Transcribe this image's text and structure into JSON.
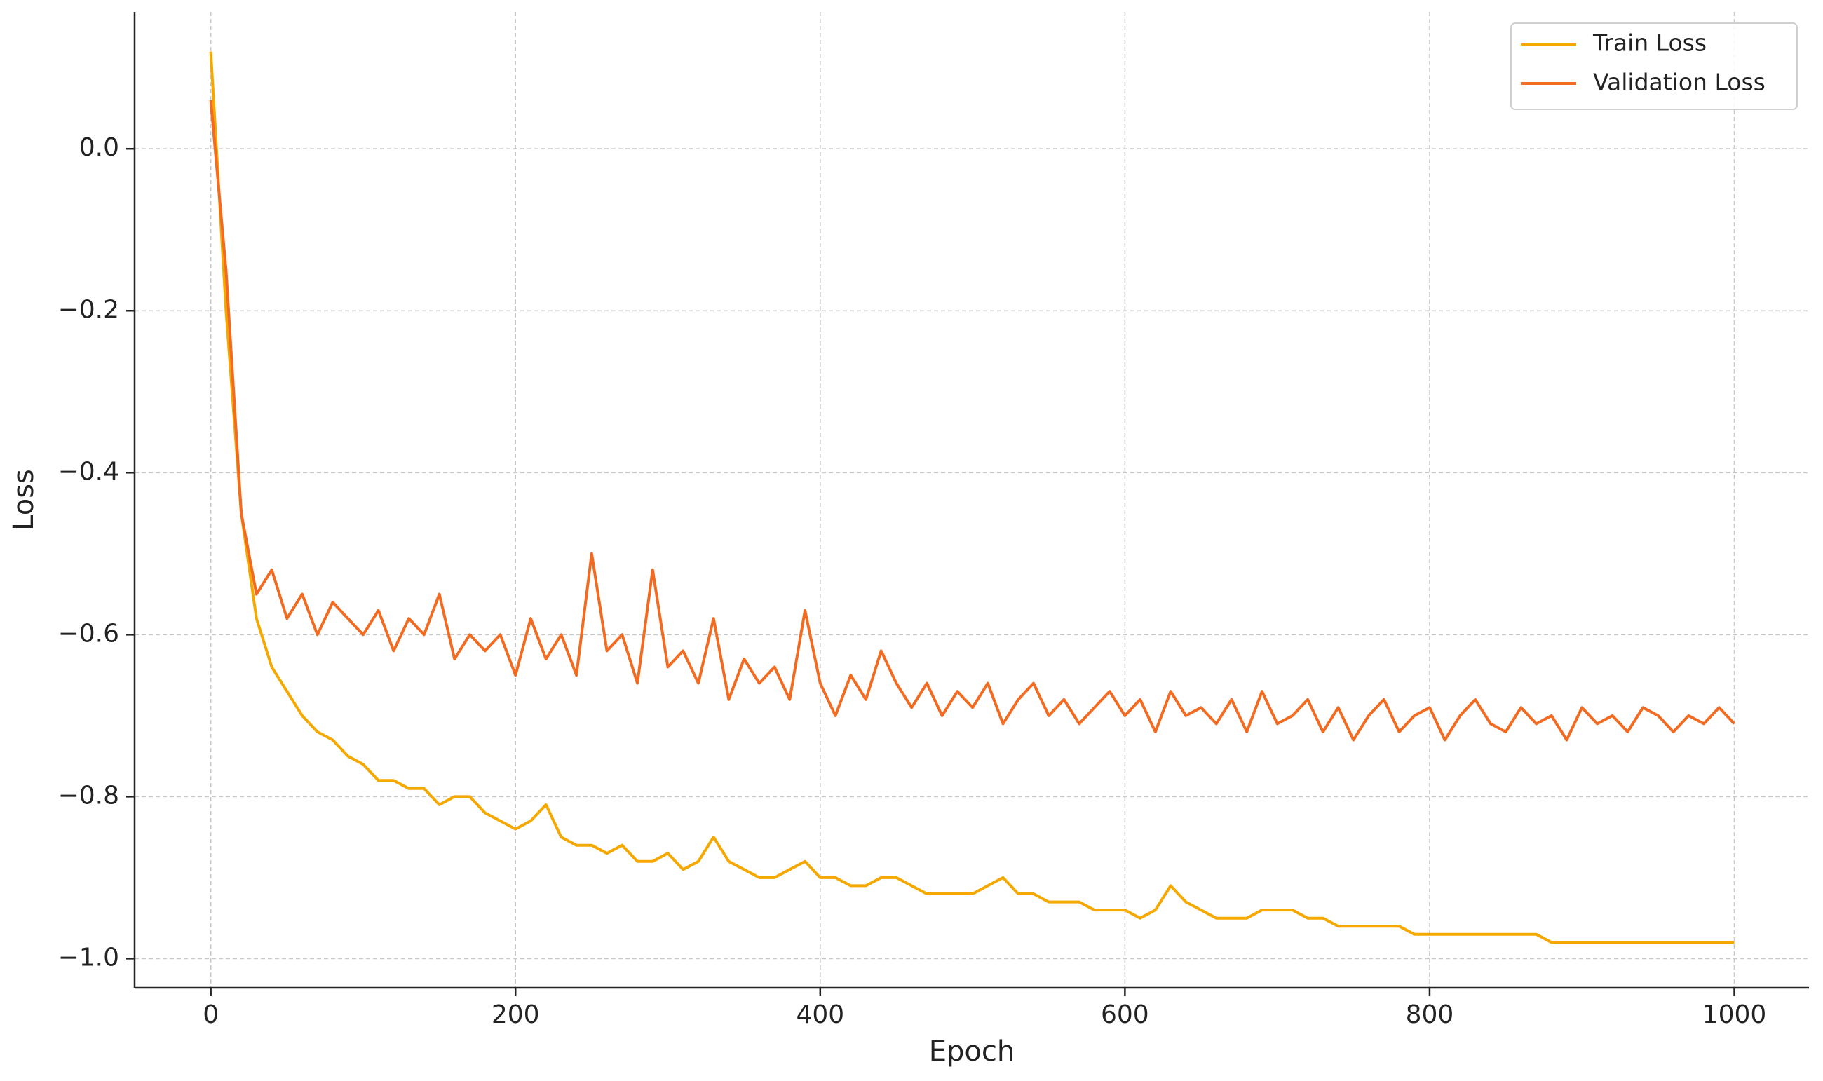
{
  "chart_data": {
    "type": "line",
    "x_label": "Epoch",
    "y_label": "Loss",
    "x": [
      0,
      10,
      20,
      30,
      40,
      50,
      60,
      70,
      80,
      90,
      100,
      110,
      120,
      130,
      140,
      150,
      160,
      170,
      180,
      190,
      200,
      210,
      220,
      230,
      240,
      250,
      260,
      270,
      280,
      290,
      300,
      310,
      320,
      330,
      340,
      350,
      360,
      370,
      380,
      390,
      400,
      410,
      420,
      430,
      440,
      450,
      460,
      470,
      480,
      490,
      500,
      510,
      520,
      530,
      540,
      550,
      560,
      570,
      580,
      590,
      600,
      610,
      620,
      630,
      640,
      650,
      660,
      670,
      680,
      690,
      700,
      710,
      720,
      730,
      740,
      750,
      760,
      770,
      780,
      790,
      800,
      810,
      820,
      830,
      840,
      850,
      860,
      870,
      880,
      890,
      900,
      910,
      920,
      930,
      940,
      950,
      960,
      970,
      980,
      990,
      1000
    ],
    "series": [
      {
        "name": "Train Loss",
        "color": "#f5a800",
        "values": [
          0.12,
          -0.2,
          -0.45,
          -0.58,
          -0.64,
          -0.67,
          -0.7,
          -0.72,
          -0.73,
          -0.75,
          -0.76,
          -0.78,
          -0.78,
          -0.79,
          -0.79,
          -0.81,
          -0.8,
          -0.8,
          -0.82,
          -0.83,
          -0.84,
          -0.83,
          -0.81,
          -0.85,
          -0.86,
          -0.86,
          -0.87,
          -0.86,
          -0.88,
          -0.88,
          -0.87,
          -0.89,
          -0.88,
          -0.85,
          -0.88,
          -0.89,
          -0.9,
          -0.9,
          -0.89,
          -0.88,
          -0.9,
          -0.9,
          -0.91,
          -0.91,
          -0.9,
          -0.9,
          -0.91,
          -0.92,
          -0.92,
          -0.92,
          -0.92,
          -0.91,
          -0.9,
          -0.92,
          -0.92,
          -0.93,
          -0.93,
          -0.93,
          -0.94,
          -0.94,
          -0.94,
          -0.95,
          -0.94,
          -0.91,
          -0.93,
          -0.94,
          -0.95,
          -0.95,
          -0.95,
          -0.94,
          -0.94,
          -0.94,
          -0.95,
          -0.95,
          -0.96,
          -0.96,
          -0.96,
          -0.96,
          -0.96,
          -0.97,
          -0.97,
          -0.97,
          -0.97,
          -0.97,
          -0.97,
          -0.97,
          -0.97,
          -0.97,
          -0.98,
          -0.98,
          -0.98,
          -0.98,
          -0.98,
          -0.98,
          -0.98,
          -0.98,
          -0.98,
          -0.98,
          -0.98,
          -0.98,
          -0.98
        ]
      },
      {
        "name": "Validation Loss",
        "color": "#f26b21",
        "values": [
          0.06,
          -0.15,
          -0.45,
          -0.55,
          -0.52,
          -0.58,
          -0.55,
          -0.6,
          -0.56,
          -0.58,
          -0.6,
          -0.57,
          -0.62,
          -0.58,
          -0.6,
          -0.55,
          -0.63,
          -0.6,
          -0.62,
          -0.6,
          -0.65,
          -0.58,
          -0.63,
          -0.6,
          -0.65,
          -0.5,
          -0.62,
          -0.6,
          -0.66,
          -0.52,
          -0.64,
          -0.62,
          -0.66,
          -0.58,
          -0.68,
          -0.63,
          -0.66,
          -0.64,
          -0.68,
          -0.57,
          -0.66,
          -0.7,
          -0.65,
          -0.68,
          -0.62,
          -0.66,
          -0.69,
          -0.66,
          -0.7,
          -0.67,
          -0.69,
          -0.66,
          -0.71,
          -0.68,
          -0.66,
          -0.7,
          -0.68,
          -0.71,
          -0.69,
          -0.67,
          -0.7,
          -0.68,
          -0.72,
          -0.67,
          -0.7,
          -0.69,
          -0.71,
          -0.68,
          -0.72,
          -0.67,
          -0.71,
          -0.7,
          -0.68,
          -0.72,
          -0.69,
          -0.73,
          -0.7,
          -0.68,
          -0.72,
          -0.7,
          -0.69,
          -0.73,
          -0.7,
          -0.68,
          -0.71,
          -0.72,
          -0.69,
          -0.71,
          -0.7,
          -0.73,
          -0.69,
          -0.71,
          -0.7,
          -0.72,
          -0.69,
          -0.7,
          -0.72,
          -0.7,
          -0.71,
          -0.69,
          -0.71
        ]
      }
    ],
    "xlim": [
      -50,
      1049
    ],
    "ylim": [
      -1.036,
      0.169
    ],
    "xticks": [
      0,
      200,
      400,
      600,
      800,
      1000
    ],
    "yticks": [
      {
        "value": 0,
        "label": "0.0"
      },
      {
        "value": -0.2,
        "label": "−0.2"
      },
      {
        "value": -0.4,
        "label": "−0.4"
      },
      {
        "value": -0.6,
        "label": "−0.6"
      },
      {
        "value": -0.8,
        "label": "−0.8"
      },
      {
        "value": -1.0,
        "label": "−1.0"
      }
    ],
    "grid": true,
    "legend_position": "upper right"
  }
}
